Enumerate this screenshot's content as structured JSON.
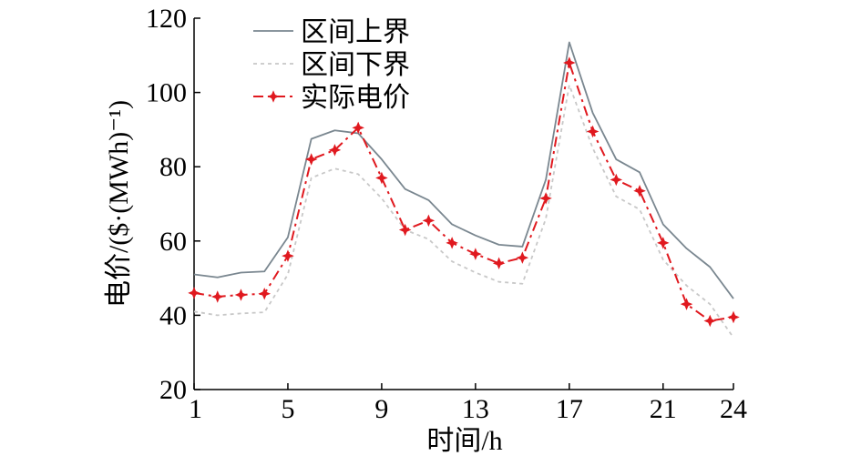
{
  "chart_data": {
    "type": "line",
    "xlabel": "时间/h",
    "ylabel": "电价/($·(MWh)⁻¹)",
    "xlim": [
      1,
      24
    ],
    "ylim": [
      20,
      120
    ],
    "x_ticks": [
      1,
      5,
      9,
      13,
      17,
      21,
      24
    ],
    "y_ticks": [
      20,
      40,
      60,
      80,
      100,
      120
    ],
    "x": [
      1,
      2,
      3,
      4,
      5,
      6,
      7,
      8,
      9,
      10,
      11,
      12,
      13,
      14,
      15,
      16,
      17,
      18,
      19,
      20,
      21,
      22,
      23,
      24
    ],
    "legend_position": "top-center",
    "series": [
      {
        "name": "区间上界",
        "color": "#7a8790",
        "style": "solid",
        "values": [
          51.0,
          50.2,
          51.5,
          51.8,
          61.0,
          87.5,
          89.8,
          89.0,
          82.0,
          74.0,
          71.0,
          64.5,
          61.5,
          59.0,
          58.5,
          76.5,
          113.5,
          94.5,
          82.0,
          78.5,
          64.5,
          58.0,
          53.0,
          44.5
        ]
      },
      {
        "name": "区间下界",
        "color": "#c8c8c8",
        "style": "dotted",
        "values": [
          41.0,
          40.0,
          40.5,
          40.8,
          51.0,
          77.0,
          79.5,
          78.0,
          71.5,
          63.0,
          60.5,
          54.5,
          51.5,
          49.0,
          48.5,
          66.0,
          102.0,
          85.0,
          72.0,
          68.5,
          55.0,
          48.0,
          43.0,
          34.0
        ]
      },
      {
        "name": "实际电价",
        "color": "#e0191f",
        "style": "dashdot",
        "marker": "star",
        "values": [
          46.0,
          45.0,
          45.5,
          45.8,
          56.0,
          82.0,
          84.5,
          90.5,
          77.0,
          63.0,
          65.5,
          59.5,
          56.5,
          54.0,
          55.5,
          71.5,
          108.0,
          89.5,
          76.5,
          73.5,
          59.5,
          43.0,
          38.5,
          39.5
        ]
      }
    ]
  }
}
